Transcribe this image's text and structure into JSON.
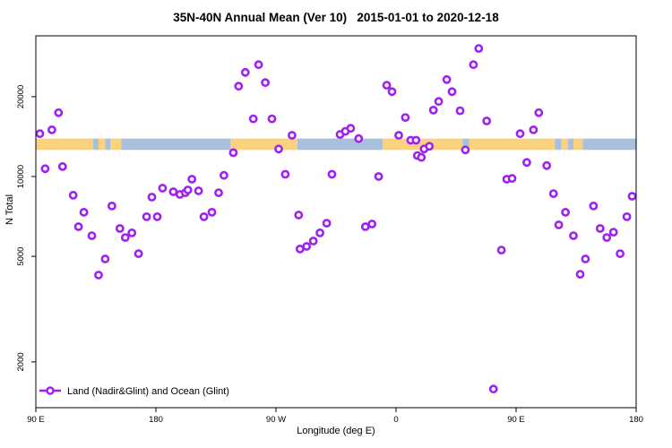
{
  "title": "35N-40N Annual Mean (Ver 10)   2015-01-01 to 2020-12-18",
  "chart_data": {
    "type": "scatter",
    "title": "35N-40N Annual Mean (Ver 10)   2015-01-01 to 2020-12-18",
    "xlabel": "Longitude (deg E)",
    "ylabel": "N Total",
    "x_axis": {
      "min_deg": 90,
      "max_deg": 540,
      "ticks": [
        {
          "deg": 90,
          "label": "90 E"
        },
        {
          "deg": 180,
          "label": "180"
        },
        {
          "deg": 270,
          "label": "90 W"
        },
        {
          "deg": 360,
          "label": "0"
        },
        {
          "deg": 450,
          "label": "90 E"
        },
        {
          "deg": 540,
          "label": "180"
        }
      ]
    },
    "y_axis": {
      "scale": "log",
      "min": 1344,
      "max": 33920,
      "ticks": [
        {
          "value": 20000,
          "label": "20000"
        },
        {
          "value": 10000,
          "label": "10000"
        },
        {
          "value": 5000,
          "label": "5000"
        },
        {
          "value": 2000,
          "label": "2000"
        }
      ]
    },
    "legend": {
      "label": "Land (Nadir&Glint) and Ocean (Glint)"
    },
    "colors": {
      "marker": "#A020F0",
      "marker_fill": "#ffffff",
      "land": "#FAD27F",
      "ocean": "#A9C0DC",
      "axis": "#000000"
    },
    "map_band": {
      "N_range": [
        12600,
        13900
      ],
      "segments": [
        {
          "from": 90,
          "to": 133,
          "type": "land"
        },
        {
          "from": 133,
          "to": 137,
          "type": "ocean"
        },
        {
          "from": 137,
          "to": 142,
          "type": "land"
        },
        {
          "from": 142,
          "to": 146,
          "type": "ocean"
        },
        {
          "from": 146,
          "to": 154,
          "type": "land"
        },
        {
          "from": 154,
          "to": 236,
          "type": "ocean"
        },
        {
          "from": 236,
          "to": 286,
          "type": "land"
        },
        {
          "from": 286,
          "to": 350,
          "type": "ocean"
        },
        {
          "from": 350,
          "to": 410,
          "type": "land"
        },
        {
          "from": 410,
          "to": 415,
          "type": "ocean"
        },
        {
          "from": 415,
          "to": 479,
          "type": "land"
        },
        {
          "from": 479,
          "to": 484,
          "type": "ocean"
        },
        {
          "from": 484,
          "to": 489,
          "type": "land"
        },
        {
          "from": 489,
          "to": 493,
          "type": "ocean"
        },
        {
          "from": 493,
          "to": 500,
          "type": "land"
        },
        {
          "from": 500,
          "to": 540,
          "type": "ocean"
        }
      ]
    },
    "points_deg_N": [
      [
        107,
        17400
      ],
      [
        102,
        15000
      ],
      [
        93,
        14500
      ],
      [
        97,
        10700
      ],
      [
        110,
        10900
      ],
      [
        118,
        8500
      ],
      [
        126,
        7330
      ],
      [
        122,
        6470
      ],
      [
        147,
        7740
      ],
      [
        132,
        5980
      ],
      [
        153,
        6370
      ],
      [
        157,
        5890
      ],
      [
        162,
        6130
      ],
      [
        167,
        5120
      ],
      [
        142,
        4890
      ],
      [
        137,
        4250
      ],
      [
        173,
        7050
      ],
      [
        177,
        8360
      ],
      [
        181,
        7050
      ],
      [
        185,
        9040
      ],
      [
        193,
        8760
      ],
      [
        198,
        8560
      ],
      [
        202,
        8690
      ],
      [
        204,
        8900
      ],
      [
        207,
        9770
      ],
      [
        212,
        8830
      ],
      [
        216,
        7050
      ],
      [
        222,
        7330
      ],
      [
        227,
        8690
      ],
      [
        231,
        10100
      ],
      [
        238,
        12300
      ],
      [
        242,
        21900
      ],
      [
        247,
        24700
      ],
      [
        253,
        16500
      ],
      [
        257,
        26400
      ],
      [
        262,
        22600
      ],
      [
        267,
        16500
      ],
      [
        272,
        12700
      ],
      [
        277,
        10200
      ],
      [
        282,
        14300
      ],
      [
        287,
        7160
      ],
      [
        288,
        5330
      ],
      [
        293,
        5450
      ],
      [
        298,
        5710
      ],
      [
        303,
        6130
      ],
      [
        308,
        6670
      ],
      [
        312,
        10200
      ],
      [
        318,
        14400
      ],
      [
        322,
        14800
      ],
      [
        326,
        15200
      ],
      [
        332,
        13900
      ],
      [
        337,
        6470
      ],
      [
        342,
        6620
      ],
      [
        347,
        10000
      ],
      [
        353,
        22100
      ],
      [
        357,
        20900
      ],
      [
        362,
        14300
      ],
      [
        367,
        16700
      ],
      [
        371,
        13700
      ],
      [
        375,
        13700
      ],
      [
        376,
        12000
      ],
      [
        379,
        11800
      ],
      [
        381,
        12700
      ],
      [
        385,
        13000
      ],
      [
        388,
        17800
      ],
      [
        392,
        19200
      ],
      [
        398,
        23200
      ],
      [
        402,
        20900
      ],
      [
        408,
        17700
      ],
      [
        412,
        12600
      ],
      [
        418,
        26400
      ],
      [
        422,
        30400
      ],
      [
        428,
        16200
      ],
      [
        433,
        1580
      ],
      [
        439,
        5280
      ],
      [
        443,
        9770
      ],
      [
        447,
        9840
      ],
      [
        453,
        14500
      ],
      [
        458,
        11300
      ],
      [
        463,
        15000
      ],
      [
        467,
        17400
      ],
      [
        473,
        11000
      ],
      [
        478,
        8620
      ],
      [
        482,
        6570
      ],
      [
        487,
        7330
      ],
      [
        493,
        5980
      ],
      [
        498,
        4280
      ],
      [
        502,
        4890
      ],
      [
        508,
        7740
      ],
      [
        513,
        6370
      ],
      [
        518,
        5890
      ],
      [
        523,
        6170
      ],
      [
        528,
        5120
      ],
      [
        533,
        7050
      ],
      [
        537,
        8430
      ]
    ]
  }
}
